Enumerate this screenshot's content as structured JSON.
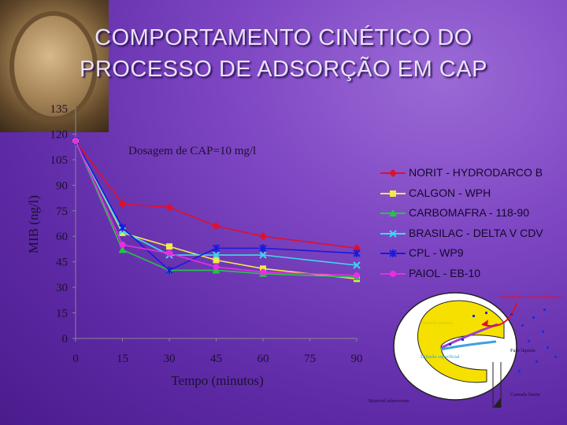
{
  "title": {
    "line1": "COMPORTAMENTO CINÉTICO DO",
    "line2": "PROCESSO DE ADSORÇÃO EM CAP"
  },
  "chart_data": {
    "type": "line",
    "annotation": "Dosagem de CAP=10 mg/l",
    "xlabel": "Tempo (minutos)",
    "ylabel": "MIB (ng/l)",
    "xlim": [
      0,
      90
    ],
    "ylim": [
      0,
      135
    ],
    "x_ticks": [
      "0",
      "15",
      "30",
      "45",
      "60",
      "75",
      "90"
    ],
    "y_ticks": [
      "0",
      "15",
      "30",
      "45",
      "60",
      "75",
      "90",
      "105",
      "120",
      "135"
    ],
    "legend_position": "right",
    "grid": false,
    "x": [
      0,
      15,
      30,
      45,
      60,
      90
    ],
    "series": [
      {
        "name": "NORIT - HYDRODARCO B",
        "color": "#e0102a",
        "marker": "diamond",
        "values": [
          116,
          79,
          77,
          66,
          60,
          53
        ]
      },
      {
        "name": "CALGON - WPH",
        "color": "#f2e84a",
        "marker": "square",
        "values": [
          116,
          62,
          54,
          46,
          41,
          35
        ]
      },
      {
        "name": "CARBOMAFRA - 118-90",
        "color": "#27c24a",
        "marker": "triangle",
        "values": [
          116,
          52,
          40,
          40,
          38,
          36
        ]
      },
      {
        "name": "BRASILAC - DELTA V CDV",
        "color": "#3fd6f0",
        "marker": "x",
        "values": [
          116,
          63,
          49,
          49,
          49,
          43
        ]
      },
      {
        "name": "CPL - WP9",
        "color": "#1a1adc",
        "marker": "star",
        "values": [
          116,
          65,
          40,
          53,
          53,
          50
        ]
      },
      {
        "name": "PAIOL - EB-10",
        "color": "#e82ee0",
        "marker": "circle",
        "values": [
          116,
          55,
          50,
          42,
          39,
          37
        ]
      }
    ]
  },
  "diagram": {
    "label_transfer": "Transferência externa de massa",
    "label_pore": "Difusão porosa",
    "label_surface": "Difusão superficial",
    "label_liquid": "Fase líquida",
    "label_adsorbent": "Material adsorvente",
    "label_boundary": "Camada limite"
  }
}
